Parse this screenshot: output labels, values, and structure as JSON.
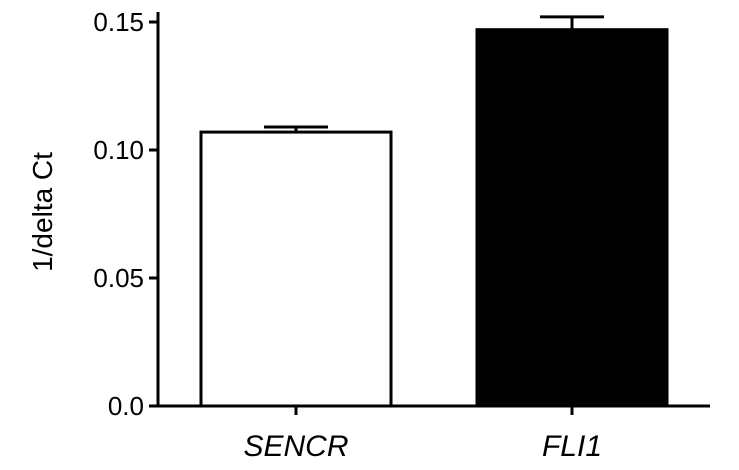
{
  "chart_data": {
    "type": "bar",
    "categories": [
      "SENCR",
      "FLI1"
    ],
    "values": [
      0.107,
      0.147
    ],
    "errors": [
      0.002,
      0.005
    ],
    "bar_colors": [
      "#ffffff",
      "#000000"
    ],
    "italic_categories": true,
    "xlabel": "",
    "ylabel": "1/delta Ct",
    "ylim": [
      0,
      0.15
    ],
    "yticks": [
      {
        "value": 0.0,
        "label": "0.0"
      },
      {
        "value": 0.05,
        "label": "0.05"
      },
      {
        "value": 0.1,
        "label": "0.10"
      },
      {
        "value": 0.15,
        "label": "0.15"
      }
    ],
    "grid": false,
    "legend": "none"
  }
}
